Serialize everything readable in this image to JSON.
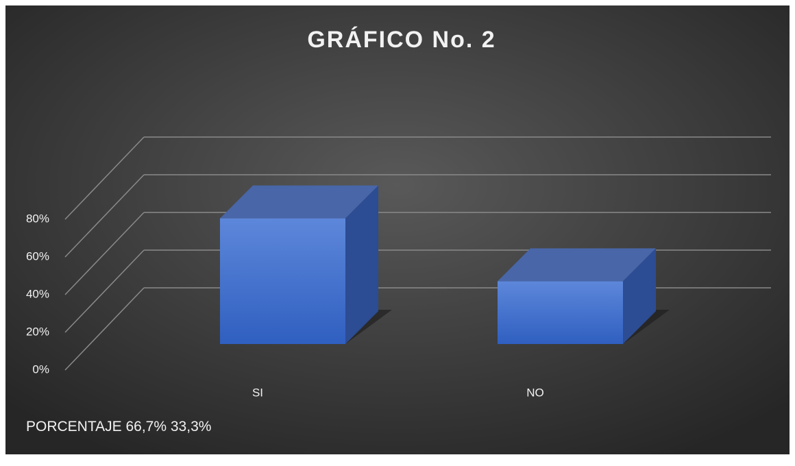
{
  "chart_data": {
    "type": "bar3d",
    "title": "GRÁFICO No. 2",
    "categories": [
      "SI",
      "NO"
    ],
    "series": [
      {
        "name": "PORCENTAJE",
        "color": "#3f6fd1",
        "values": [
          66.7,
          33.3
        ],
        "value_labels": [
          "66,7%",
          "33,3%"
        ]
      }
    ],
    "ylim": [
      0,
      80
    ],
    "yticks": [
      {
        "value": 0,
        "label": "0%"
      },
      {
        "value": 20,
        "label": "20%"
      },
      {
        "value": 40,
        "label": "40%"
      },
      {
        "value": 60,
        "label": "60%"
      },
      {
        "value": 80,
        "label": "80%"
      }
    ],
    "grid": true
  }
}
